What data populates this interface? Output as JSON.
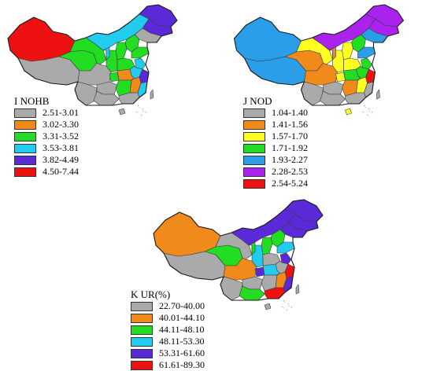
{
  "maps": [
    {
      "id": "I",
      "title": "I  NOHB",
      "legend": [
        {
          "label": "2.51-3.01",
          "color": "#aaaaaa"
        },
        {
          "label": "3.02-3.30",
          "color": "#f08a1a"
        },
        {
          "label": "3.31-3.52",
          "color": "#22dd22"
        },
        {
          "label": "3.53-3.81",
          "color": "#22ccee"
        },
        {
          "label": "3.82-4.49",
          "color": "#5b2ad8"
        },
        {
          "label": "4.50-7.44",
          "color": "#ee1111"
        }
      ],
      "regions": {
        "xinjiang": 5,
        "tibet": 0,
        "qinghai": 2,
        "gansu": 2,
        "inner_mongolia": 3,
        "heilongjiang": 4,
        "jilin": 4,
        "liaoning": 0,
        "beijing": 4,
        "hebei": 2,
        "shanxi": 2,
        "shaanxi": 2,
        "ningxia": 3,
        "sichuan": 0,
        "chongqing": 2,
        "yunnan": 0,
        "guizhou": 0,
        "guangxi": 0,
        "hubei": 1,
        "hunan": 2,
        "henan": 2,
        "shandong": 2,
        "jiangsu": 3,
        "anhui": 3,
        "zhejiang": 4,
        "jiangxi": 1,
        "fujian": 3,
        "guangdong": 0,
        "hainan": 0,
        "taiwan": 0
      }
    },
    {
      "id": "J",
      "title": "J  NOD",
      "legend": [
        {
          "label": "1.04-1.40",
          "color": "#aaaaaa"
        },
        {
          "label": "1.41-1.56",
          "color": "#f08a1a"
        },
        {
          "label": "1.57-1.70",
          "color": "#ffff22"
        },
        {
          "label": "1.71-1.92",
          "color": "#22dd22"
        },
        {
          "label": "1.93-2.27",
          "color": "#2a9ee8"
        },
        {
          "label": "2.28-2.53",
          "color": "#aa22ee"
        },
        {
          "label": "2.54-5.24",
          "color": "#ee1111"
        }
      ],
      "regions": {
        "xinjiang": 4,
        "tibet": 4,
        "qinghai": 1,
        "gansu": 2,
        "inner_mongolia": 5,
        "heilongjiang": 5,
        "jilin": 5,
        "liaoning": 4,
        "beijing": 4,
        "hebei": 3,
        "shanxi": 2,
        "shaanxi": 2,
        "ningxia": 1,
        "sichuan": 1,
        "chongqing": 2,
        "yunnan": 0,
        "guizhou": 0,
        "guangxi": 0,
        "hubei": 3,
        "hunan": 1,
        "henan": 2,
        "shandong": 4,
        "jiangsu": 3,
        "anhui": 3,
        "zhejiang": 6,
        "jiangxi": 2,
        "fujian": 0,
        "guangdong": 0,
        "hainan": 2,
        "taiwan": 0
      }
    },
    {
      "id": "K",
      "title": "K UR(%)",
      "legend": [
        {
          "label": "22.70-40.00",
          "color": "#aaaaaa"
        },
        {
          "label": "40.01-44.10",
          "color": "#f08a1a"
        },
        {
          "label": "44.11-48.10",
          "color": "#22dd22"
        },
        {
          "label": "48.11-53.30",
          "color": "#22ccee"
        },
        {
          "label": "53.31-61.60",
          "color": "#5b2ad8"
        },
        {
          "label": "61.61-89.30",
          "color": "#ee1111"
        }
      ],
      "regions": {
        "xinjiang": 1,
        "tibet": 0,
        "qinghai": 2,
        "gansu": 0,
        "inner_mongolia": 4,
        "heilongjiang": 4,
        "jilin": 4,
        "liaoning": 4,
        "beijing": 5,
        "hebei": 2,
        "shanxi": 2,
        "shaanxi": 3,
        "ningxia": 2,
        "sichuan": 1,
        "chongqing": 4,
        "yunnan": 0,
        "guizhou": 0,
        "guangxi": 2,
        "hubei": 3,
        "hunan": 0,
        "henan": 0,
        "shandong": 3,
        "jiangsu": 4,
        "anhui": 0,
        "zhejiang": 5,
        "jiangxi": 1,
        "fujian": 4,
        "guangdong": 5,
        "hainan": 0,
        "taiwan": 0
      }
    }
  ]
}
